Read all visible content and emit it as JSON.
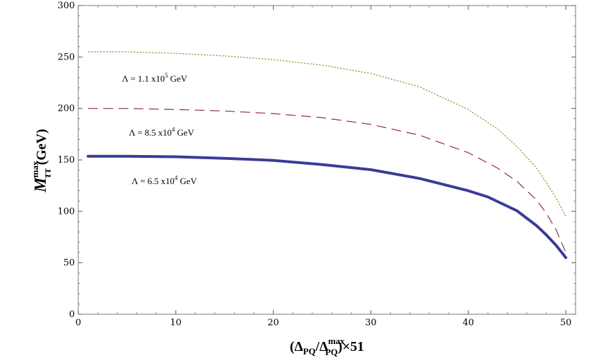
{
  "chart_data": {
    "type": "line",
    "xlabel": {
      "prefix": "(Δ",
      "sub1": "PQ",
      "mid": "/Δ",
      "sub2": "PQ",
      "sup2": "max",
      "suffix": ")×51"
    },
    "ylabel": {
      "main": "M",
      "sup": "max",
      "sub": "ττ",
      "unit": " (GeV)"
    },
    "xlim": [
      0,
      51
    ],
    "ylim": [
      0,
      300
    ],
    "xticks": [
      0,
      10,
      20,
      30,
      40,
      50
    ],
    "yticks": [
      0,
      50,
      100,
      150,
      200,
      250,
      300
    ],
    "grid": false,
    "series": [
      {
        "label": {
          "pre": "Λ = 1.1 x10",
          "sup": "5",
          "post": " GeV"
        },
        "color": "#8a8a1e",
        "style": "dotted",
        "x": [
          1,
          5,
          10,
          15,
          20,
          25,
          30,
          35,
          40,
          43,
          45,
          47,
          48,
          49,
          50
        ],
        "y": [
          255,
          255,
          253.5,
          251,
          247.5,
          242,
          234,
          221,
          199,
          180,
          163,
          142,
          128,
          113,
          95
        ]
      },
      {
        "label": {
          "pre": "Λ = 8.5 x10",
          "sup": "4",
          "post": " GeV"
        },
        "color": "#8e2a4f",
        "style": "dashed",
        "x": [
          1,
          5,
          10,
          15,
          20,
          25,
          30,
          35,
          40,
          43,
          45,
          47,
          48,
          49,
          50
        ],
        "y": [
          200,
          200,
          199,
          197.5,
          195,
          191,
          184.5,
          174,
          157,
          142,
          129,
          111,
          98,
          82,
          60
        ]
      },
      {
        "label": {
          "pre": "Λ = 6.5 x10",
          "sup": "4",
          "post": " GeV"
        },
        "color": "#3b3b98",
        "style": "solid",
        "x": [
          1,
          5,
          10,
          15,
          20,
          25,
          30,
          35,
          40,
          42,
          45,
          47,
          48,
          49,
          50
        ],
        "y": [
          153.5,
          153.5,
          153,
          151.5,
          149.5,
          145.5,
          140.5,
          132,
          120,
          114,
          100.5,
          86,
          77,
          67,
          55
        ]
      }
    ]
  }
}
